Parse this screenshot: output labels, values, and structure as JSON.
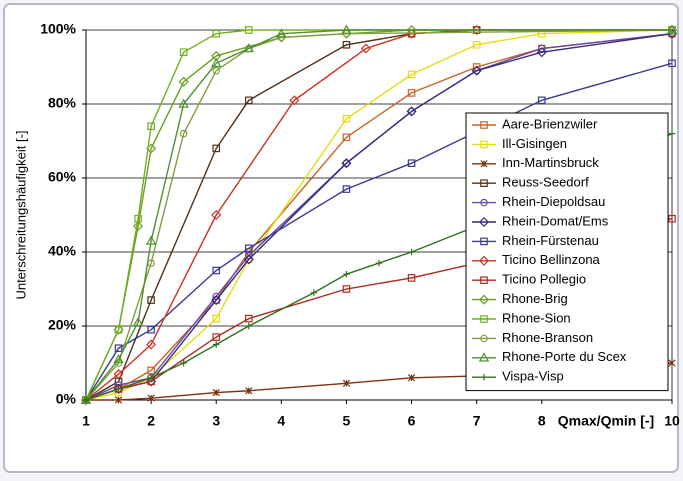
{
  "chart_data": {
    "type": "line",
    "xlabel": "Qmax/Qmin [-]",
    "ylabel": "Unterschreitungshäufigkeit [-]",
    "xlim": [
      1,
      10
    ],
    "ylim": [
      0,
      100
    ],
    "xticks": [
      1,
      2,
      3,
      4,
      5,
      6,
      7,
      8,
      10
    ],
    "yticks": [
      {
        "value": 0,
        "label": "0%"
      },
      {
        "value": 20,
        "label": "20%"
      },
      {
        "value": 40,
        "label": "40%"
      },
      {
        "value": 60,
        "label": "60%"
      },
      {
        "value": 80,
        "label": "80%"
      },
      {
        "value": 100,
        "label": "100%"
      }
    ],
    "grid": true,
    "legend": "right",
    "series": [
      {
        "name": "Aare-Brienzwiler",
        "color": "#c8642a",
        "marker": "square",
        "x": [
          1,
          1.5,
          2,
          3,
          3.5,
          5,
          6,
          7,
          8,
          10
        ],
        "values": [
          0,
          3,
          8,
          27,
          40,
          71,
          83,
          90,
          95,
          99
        ]
      },
      {
        "name": "Ill-Gisingen",
        "color": "#e6dc10",
        "marker": "square",
        "x": [
          1,
          1.5,
          2,
          3,
          3.5,
          5,
          6,
          7,
          8,
          10
        ],
        "values": [
          0,
          2,
          6,
          22,
          38,
          76,
          88,
          96,
          99,
          100
        ]
      },
      {
        "name": "Inn-Martinsbruck",
        "color": "#7a3212",
        "marker": "star",
        "x": [
          1,
          1.5,
          2,
          3,
          3.5,
          5,
          6,
          7,
          10
        ],
        "values": [
          0,
          0,
          0.5,
          2,
          2.5,
          4.5,
          6,
          6.5,
          10
        ]
      },
      {
        "name": "Reuss-Seedorf",
        "color": "#503018",
        "marker": "square",
        "x": [
          1,
          1.5,
          2,
          3,
          3.5,
          5,
          6,
          7,
          10
        ],
        "values": [
          0,
          5,
          27,
          68,
          81,
          96,
          99,
          100,
          100
        ]
      },
      {
        "name": "Rhein-Diepoldsau",
        "color": "#6a4aa0",
        "marker": "circle",
        "x": [
          1,
          1.5,
          2,
          3,
          3.5,
          5,
          6,
          7,
          8,
          10
        ],
        "values": [
          0,
          4,
          6,
          28,
          39,
          64,
          78,
          89,
          95,
          99
        ]
      },
      {
        "name": "Rhein-Domat/Ems",
        "color": "#3a2a80",
        "marker": "diamond",
        "x": [
          1,
          1.5,
          2,
          3,
          3.5,
          5,
          6,
          7,
          8,
          10
        ],
        "values": [
          0,
          3,
          5,
          27,
          38,
          64,
          78,
          89,
          94,
          99
        ]
      },
      {
        "name": "Rhein-Fürstenau",
        "color": "#3a3a90",
        "marker": "square",
        "x": [
          1,
          1.5,
          2,
          3,
          3.5,
          5,
          6,
          8,
          10
        ],
        "values": [
          0,
          14,
          19,
          35,
          41,
          57,
          64,
          81,
          91
        ]
      },
      {
        "name": "Ticino Bellinzona",
        "color": "#d03020",
        "marker": "diamond",
        "x": [
          1,
          1.5,
          2,
          3,
          4.2,
          5.3,
          6,
          7,
          10
        ],
        "values": [
          0,
          7,
          15,
          50,
          81,
          95,
          99,
          100,
          100
        ]
      },
      {
        "name": "Ticino Pollegio",
        "color": "#b02a20",
        "marker": "square",
        "x": [
          1,
          1.5,
          2,
          3,
          3.5,
          5,
          6,
          7,
          10
        ],
        "values": [
          0,
          3,
          5,
          17,
          22,
          30,
          33,
          37,
          49
        ]
      },
      {
        "name": "Rhone-Brig",
        "color": "#6aa020",
        "marker": "diamond",
        "x": [
          1,
          1.5,
          1.8,
          2,
          2.5,
          3,
          4,
          5,
          6,
          10
        ],
        "values": [
          0,
          19,
          47,
          68,
          86,
          93,
          98,
          99,
          100,
          100
        ]
      },
      {
        "name": "Rhone-Sion",
        "color": "#70b020",
        "marker": "square",
        "x": [
          1,
          1.5,
          1.8,
          2,
          2.5,
          3,
          3.5,
          10
        ],
        "values": [
          0,
          19,
          49,
          74,
          94,
          99,
          100,
          100
        ]
      },
      {
        "name": "Rhone-Branson",
        "color": "#80a040",
        "marker": "circle",
        "x": [
          1,
          1.5,
          2,
          2.5,
          3,
          3.5,
          4,
          5,
          10
        ],
        "values": [
          0,
          10,
          37,
          72,
          89,
          95,
          98,
          99,
          100
        ]
      },
      {
        "name": "Rhone-Porte du Scex",
        "color": "#509030",
        "marker": "triangle",
        "x": [
          1,
          1.5,
          1.8,
          2,
          2.5,
          3,
          3.5,
          4,
          5,
          10
        ],
        "values": [
          0,
          11,
          21,
          43,
          80,
          91,
          95,
          99,
          100,
          100
        ]
      },
      {
        "name": "Vispa-Visp",
        "color": "#307020",
        "marker": "plus",
        "x": [
          1,
          1.5,
          2,
          2.5,
          3,
          3.5,
          4.5,
          5,
          5.5,
          6,
          7,
          8,
          10
        ],
        "values": [
          0,
          3,
          6,
          10,
          15,
          20,
          29,
          34,
          37,
          40,
          47,
          55,
          72
        ]
      }
    ]
  }
}
